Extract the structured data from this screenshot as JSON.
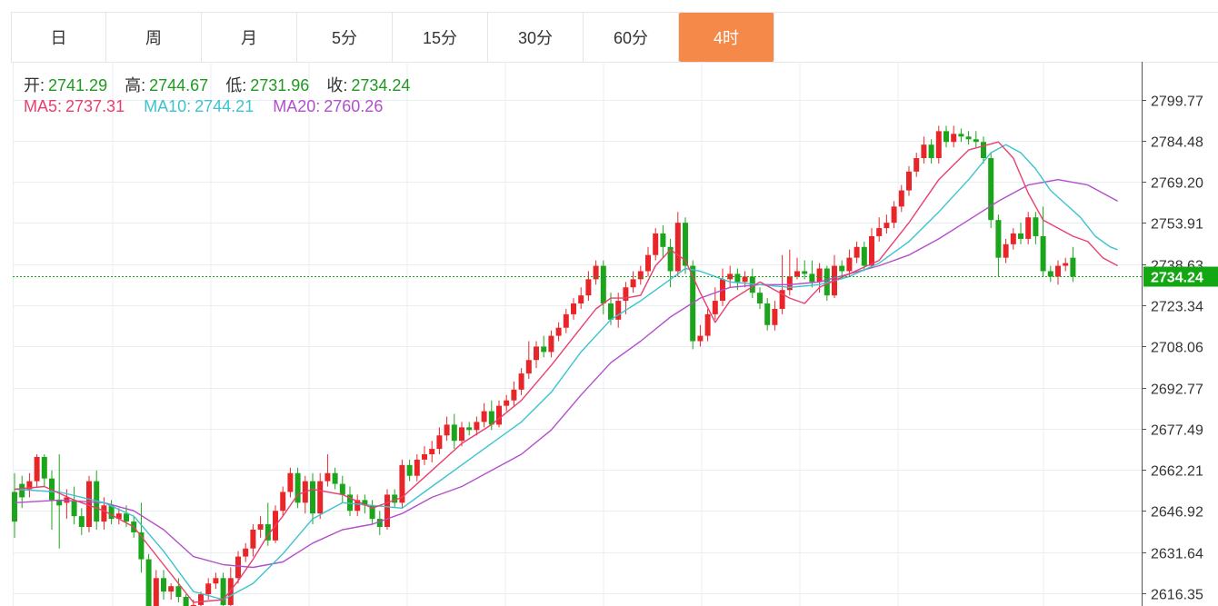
{
  "tabs": [
    {
      "label": "日",
      "active": false
    },
    {
      "label": "周",
      "active": false
    },
    {
      "label": "月",
      "active": false
    },
    {
      "label": "5分",
      "active": false
    },
    {
      "label": "15分",
      "active": false
    },
    {
      "label": "30分",
      "active": false
    },
    {
      "label": "60分",
      "active": false
    },
    {
      "label": "4时",
      "active": true
    }
  ],
  "info": {
    "open_label": "开:",
    "open": "2741.29",
    "high_label": "高:",
    "high": "2744.67",
    "low_label": "低:",
    "low": "2731.96",
    "close_label": "收:",
    "close": "2734.24",
    "ma5_label": "MA5:",
    "ma5": "2737.31",
    "ma10_label": "MA10:",
    "ma10": "2744.21",
    "ma20_label": "MA20:",
    "ma20": "2760.26"
  },
  "colors": {
    "up": "#e8262a",
    "down": "#1aa51a",
    "ma5": "#ea3f6e",
    "ma10": "#3cc3cf",
    "ma20": "#b24fcb",
    "grid": "#e9eef3",
    "axis_text": "#333333",
    "last_price_bg": "#13a813",
    "text_value": "#1f9a1f",
    "tab_active": "#f5894a"
  },
  "chart_data": {
    "type": "candlestick",
    "ylim": [
      2612.0,
      2811.0
    ],
    "yticks": [
      "2799.77",
      "2784.48",
      "2769.20",
      "2753.91",
      "2738.63",
      "2723.34",
      "2708.06",
      "2692.77",
      "2677.49",
      "2662.21",
      "2646.92",
      "2631.64",
      "2616.35"
    ],
    "last_price": "2734.24",
    "grid": true,
    "candles": [
      [
        2654,
        2643,
        2661,
        2637
      ],
      [
        2657,
        2652,
        2660,
        2648
      ],
      [
        2655,
        2658,
        2661,
        2652
      ],
      [
        2658,
        2667,
        2668,
        2656
      ],
      [
        2667,
        2659,
        2668,
        2656
      ],
      [
        2659,
        2651,
        2662,
        2640
      ],
      [
        2651,
        2649,
        2668,
        2633
      ],
      [
        2650,
        2652,
        2655,
        2644
      ],
      [
        2651,
        2645,
        2656,
        2642
      ],
      [
        2645,
        2641,
        2648,
        2638
      ],
      [
        2641,
        2658,
        2660,
        2639
      ],
      [
        2658,
        2643,
        2662,
        2640
      ],
      [
        2643,
        2649,
        2652,
        2640
      ],
      [
        2649,
        2644,
        2651,
        2642
      ],
      [
        2644,
        2646,
        2648,
        2642
      ],
      [
        2646,
        2643,
        2649,
        2641
      ],
      [
        2643,
        2639,
        2645,
        2637
      ],
      [
        2639,
        2629,
        2650,
        2624
      ],
      [
        2629,
        2610,
        2631,
        2605
      ],
      [
        2610,
        2622,
        2625,
        2608
      ],
      [
        2622,
        2617,
        2625,
        2614
      ],
      [
        2617,
        2619,
        2620,
        2614
      ],
      [
        2619,
        2615,
        2622,
        2613
      ],
      [
        2615,
        2607,
        2616,
        2605
      ],
      [
        2607,
        2612,
        2614,
        2605
      ],
      [
        2612,
        2616,
        2617,
        2609
      ],
      [
        2616,
        2620,
        2622,
        2614
      ],
      [
        2620,
        2622,
        2624,
        2618
      ],
      [
        2622,
        2612,
        2624,
        2610
      ],
      [
        2612,
        2622,
        2626,
        2610
      ],
      [
        2622,
        2630,
        2632,
        2620
      ],
      [
        2630,
        2633,
        2635,
        2628
      ],
      [
        2633,
        2640,
        2642,
        2630
      ],
      [
        2640,
        2642,
        2645,
        2637
      ],
      [
        2642,
        2636,
        2650,
        2634
      ],
      [
        2636,
        2647,
        2649,
        2635
      ],
      [
        2647,
        2654,
        2656,
        2645
      ],
      [
        2654,
        2661,
        2663,
        2652
      ],
      [
        2661,
        2650,
        2663,
        2648
      ],
      [
        2650,
        2658,
        2660,
        2646
      ],
      [
        2658,
        2646,
        2661,
        2642
      ],
      [
        2646,
        2658,
        2661,
        2644
      ],
      [
        2658,
        2661,
        2668,
        2656
      ],
      [
        2661,
        2657,
        2663,
        2655
      ],
      [
        2657,
        2653,
        2660,
        2650
      ],
      [
        2653,
        2647,
        2656,
        2645
      ],
      [
        2647,
        2651,
        2653,
        2645
      ],
      [
        2651,
        2649,
        2653,
        2646
      ],
      [
        2649,
        2644,
        2651,
        2642
      ],
      [
        2644,
        2641,
        2647,
        2638
      ],
      [
        2641,
        2653,
        2655,
        2640
      ],
      [
        2653,
        2650,
        2655,
        2648
      ],
      [
        2650,
        2664,
        2666,
        2648
      ],
      [
        2664,
        2660,
        2666,
        2658
      ],
      [
        2660,
        2666,
        2668,
        2658
      ],
      [
        2666,
        2668,
        2671,
        2664
      ],
      [
        2668,
        2670,
        2673,
        2665
      ],
      [
        2670,
        2675,
        2678,
        2668
      ],
      [
        2675,
        2679,
        2682,
        2673
      ],
      [
        2679,
        2673,
        2683,
        2670
      ],
      [
        2673,
        2678,
        2680,
        2671
      ],
      [
        2678,
        2677,
        2680,
        2675
      ],
      [
        2677,
        2680,
        2682,
        2675
      ],
      [
        2680,
        2684,
        2687,
        2678
      ],
      [
        2684,
        2679,
        2688,
        2677
      ],
      [
        2679,
        2686,
        2688,
        2678
      ],
      [
        2686,
        2688,
        2690,
        2684
      ],
      [
        2688,
        2692,
        2695,
        2686
      ],
      [
        2692,
        2698,
        2700,
        2690
      ],
      [
        2698,
        2703,
        2710,
        2696
      ],
      [
        2703,
        2708,
        2710,
        2700
      ],
      [
        2708,
        2706,
        2712,
        2704
      ],
      [
        2706,
        2712,
        2714,
        2704
      ],
      [
        2712,
        2715,
        2717,
        2710
      ],
      [
        2715,
        2720,
        2722,
        2713
      ],
      [
        2720,
        2724,
        2726,
        2718
      ],
      [
        2724,
        2727,
        2730,
        2722
      ],
      [
        2727,
        2733,
        2736,
        2725
      ],
      [
        2733,
        2738,
        2740,
        2731
      ],
      [
        2738,
        2724,
        2740,
        2720
      ],
      [
        2724,
        2718,
        2728,
        2716
      ],
      [
        2718,
        2725,
        2728,
        2715
      ],
      [
        2725,
        2730,
        2732,
        2720
      ],
      [
        2730,
        2733,
        2736,
        2728
      ],
      [
        2733,
        2736,
        2738,
        2731
      ],
      [
        2736,
        2742,
        2745,
        2734
      ],
      [
        2742,
        2750,
        2752,
        2740
      ],
      [
        2750,
        2745,
        2753,
        2741
      ],
      [
        2745,
        2736,
        2748,
        2730
      ],
      [
        2736,
        2754,
        2758,
        2734
      ],
      [
        2754,
        2738,
        2756,
        2735
      ],
      [
        2738,
        2710,
        2740,
        2707
      ],
      [
        2710,
        2712,
        2716,
        2708
      ],
      [
        2712,
        2720,
        2722,
        2710
      ],
      [
        2720,
        2725,
        2730,
        2718
      ],
      [
        2725,
        2733,
        2737,
        2723
      ],
      [
        2733,
        2735,
        2738,
        2730
      ],
      [
        2735,
        2732,
        2737,
        2729
      ],
      [
        2732,
        2734,
        2736,
        2730
      ],
      [
        2734,
        2728,
        2737,
        2726
      ],
      [
        2728,
        2724,
        2730,
        2722
      ],
      [
        2724,
        2716,
        2726,
        2714
      ],
      [
        2716,
        2722,
        2725,
        2714
      ],
      [
        2722,
        2729,
        2742,
        2720
      ],
      [
        2729,
        2734,
        2744,
        2727
      ],
      [
        2734,
        2736,
        2741,
        2733
      ],
      [
        2736,
        2735,
        2740,
        2733
      ],
      [
        2735,
        2732,
        2740,
        2730
      ],
      [
        2732,
        2737,
        2739,
        2728
      ],
      [
        2737,
        2727,
        2738,
        2725
      ],
      [
        2727,
        2738,
        2742,
        2726
      ],
      [
        2738,
        2736,
        2740,
        2733
      ],
      [
        2736,
        2741,
        2744,
        2734
      ],
      [
        2741,
        2745,
        2747,
        2739
      ],
      [
        2745,
        2738,
        2747,
        2736
      ],
      [
        2738,
        2749,
        2752,
        2737
      ],
      [
        2749,
        2752,
        2756,
        2747
      ],
      [
        2752,
        2754,
        2757,
        2750
      ],
      [
        2754,
        2760,
        2762,
        2752
      ],
      [
        2760,
        2766,
        2768,
        2758
      ],
      [
        2766,
        2773,
        2775,
        2764
      ],
      [
        2773,
        2778,
        2780,
        2771
      ],
      [
        2778,
        2783,
        2786,
        2776
      ],
      [
        2783,
        2778,
        2785,
        2776
      ],
      [
        2778,
        2788,
        2790,
        2776
      ],
      [
        2788,
        2784,
        2790,
        2782
      ],
      [
        2784,
        2787,
        2790,
        2782
      ],
      [
        2787,
        2786,
        2789,
        2784
      ],
      [
        2786,
        2785,
        2788,
        2783
      ],
      [
        2785,
        2784,
        2788,
        2782
      ],
      [
        2784,
        2778,
        2786,
        2776
      ],
      [
        2778,
        2755,
        2780,
        2752
      ],
      [
        2755,
        2741,
        2757,
        2734
      ],
      [
        2741,
        2746,
        2748,
        2739
      ],
      [
        2746,
        2750,
        2752,
        2744
      ],
      [
        2750,
        2748,
        2754,
        2746
      ],
      [
        2748,
        2756,
        2758,
        2746
      ],
      [
        2756,
        2749,
        2758,
        2746
      ],
      [
        2749,
        2736,
        2760,
        2734
      ],
      [
        2736,
        2734,
        2738,
        2732
      ],
      [
        2734,
        2738,
        2740,
        2731
      ],
      [
        2738,
        2739,
        2741,
        2736
      ],
      [
        2741,
        2734,
        2745,
        2732
      ]
    ],
    "ma5": [
      [
        0,
        2655
      ],
      [
        4,
        2656
      ],
      [
        8,
        2651
      ],
      [
        12,
        2647
      ],
      [
        16,
        2641
      ],
      [
        20,
        2627
      ],
      [
        24,
        2613
      ],
      [
        28,
        2614
      ],
      [
        30,
        2621
      ],
      [
        32,
        2629
      ],
      [
        34,
        2638
      ],
      [
        36,
        2645
      ],
      [
        38,
        2653
      ],
      [
        40,
        2655
      ],
      [
        44,
        2653
      ],
      [
        48,
        2648
      ],
      [
        52,
        2652
      ],
      [
        56,
        2662
      ],
      [
        60,
        2672
      ],
      [
        64,
        2679
      ],
      [
        68,
        2688
      ],
      [
        72,
        2701
      ],
      [
        76,
        2715
      ],
      [
        78,
        2722
      ],
      [
        80,
        2726
      ],
      [
        82,
        2726
      ],
      [
        84,
        2727
      ],
      [
        86,
        2738
      ],
      [
        88,
        2744
      ],
      [
        90,
        2740
      ],
      [
        92,
        2728
      ],
      [
        94,
        2717
      ],
      [
        96,
        2725
      ],
      [
        100,
        2732
      ],
      [
        104,
        2726
      ],
      [
        106,
        2724
      ],
      [
        108,
        2730
      ],
      [
        112,
        2735
      ],
      [
        116,
        2740
      ],
      [
        120,
        2754
      ],
      [
        124,
        2770
      ],
      [
        128,
        2781
      ],
      [
        132,
        2784
      ],
      [
        134,
        2778
      ],
      [
        136,
        2765
      ],
      [
        138,
        2755
      ],
      [
        140,
        2752
      ],
      [
        142,
        2749
      ],
      [
        144,
        2747
      ],
      [
        146,
        2741
      ],
      [
        148,
        2738
      ]
    ],
    "ma10": [
      [
        0,
        2655
      ],
      [
        6,
        2654
      ],
      [
        12,
        2650
      ],
      [
        16,
        2645
      ],
      [
        20,
        2632
      ],
      [
        24,
        2617
      ],
      [
        28,
        2614
      ],
      [
        32,
        2620
      ],
      [
        36,
        2631
      ],
      [
        40,
        2644
      ],
      [
        44,
        2650
      ],
      [
        48,
        2649
      ],
      [
        52,
        2648
      ],
      [
        56,
        2656
      ],
      [
        60,
        2664
      ],
      [
        64,
        2672
      ],
      [
        68,
        2680
      ],
      [
        72,
        2691
      ],
      [
        76,
        2706
      ],
      [
        80,
        2718
      ],
      [
        84,
        2725
      ],
      [
        88,
        2733
      ],
      [
        90,
        2737
      ],
      [
        92,
        2736
      ],
      [
        96,
        2732
      ],
      [
        100,
        2731
      ],
      [
        104,
        2730
      ],
      [
        108,
        2731
      ],
      [
        112,
        2734
      ],
      [
        116,
        2739
      ],
      [
        120,
        2747
      ],
      [
        124,
        2758
      ],
      [
        128,
        2770
      ],
      [
        131,
        2780
      ],
      [
        133,
        2783
      ],
      [
        135,
        2780
      ],
      [
        137,
        2774
      ],
      [
        139,
        2766
      ],
      [
        141,
        2761
      ],
      [
        143,
        2756
      ],
      [
        145,
        2749
      ],
      [
        147,
        2745
      ],
      [
        148,
        2744
      ]
    ],
    "ma20": [
      [
        0,
        2650
      ],
      [
        6,
        2651
      ],
      [
        12,
        2650
      ],
      [
        16,
        2647
      ],
      [
        20,
        2640
      ],
      [
        24,
        2630
      ],
      [
        28,
        2627
      ],
      [
        32,
        2626
      ],
      [
        36,
        2628
      ],
      [
        40,
        2635
      ],
      [
        44,
        2640
      ],
      [
        48,
        2642
      ],
      [
        52,
        2646
      ],
      [
        56,
        2652
      ],
      [
        60,
        2656
      ],
      [
        64,
        2662
      ],
      [
        68,
        2668
      ],
      [
        72,
        2677
      ],
      [
        76,
        2690
      ],
      [
        80,
        2702
      ],
      [
        84,
        2710
      ],
      [
        88,
        2719
      ],
      [
        92,
        2726
      ],
      [
        96,
        2730
      ],
      [
        100,
        2731
      ],
      [
        104,
        2731
      ],
      [
        108,
        2732
      ],
      [
        112,
        2735
      ],
      [
        116,
        2738
      ],
      [
        120,
        2742
      ],
      [
        124,
        2748
      ],
      [
        128,
        2755
      ],
      [
        132,
        2762
      ],
      [
        136,
        2768
      ],
      [
        140,
        2770
      ],
      [
        144,
        2768
      ],
      [
        148,
        2762
      ]
    ]
  }
}
